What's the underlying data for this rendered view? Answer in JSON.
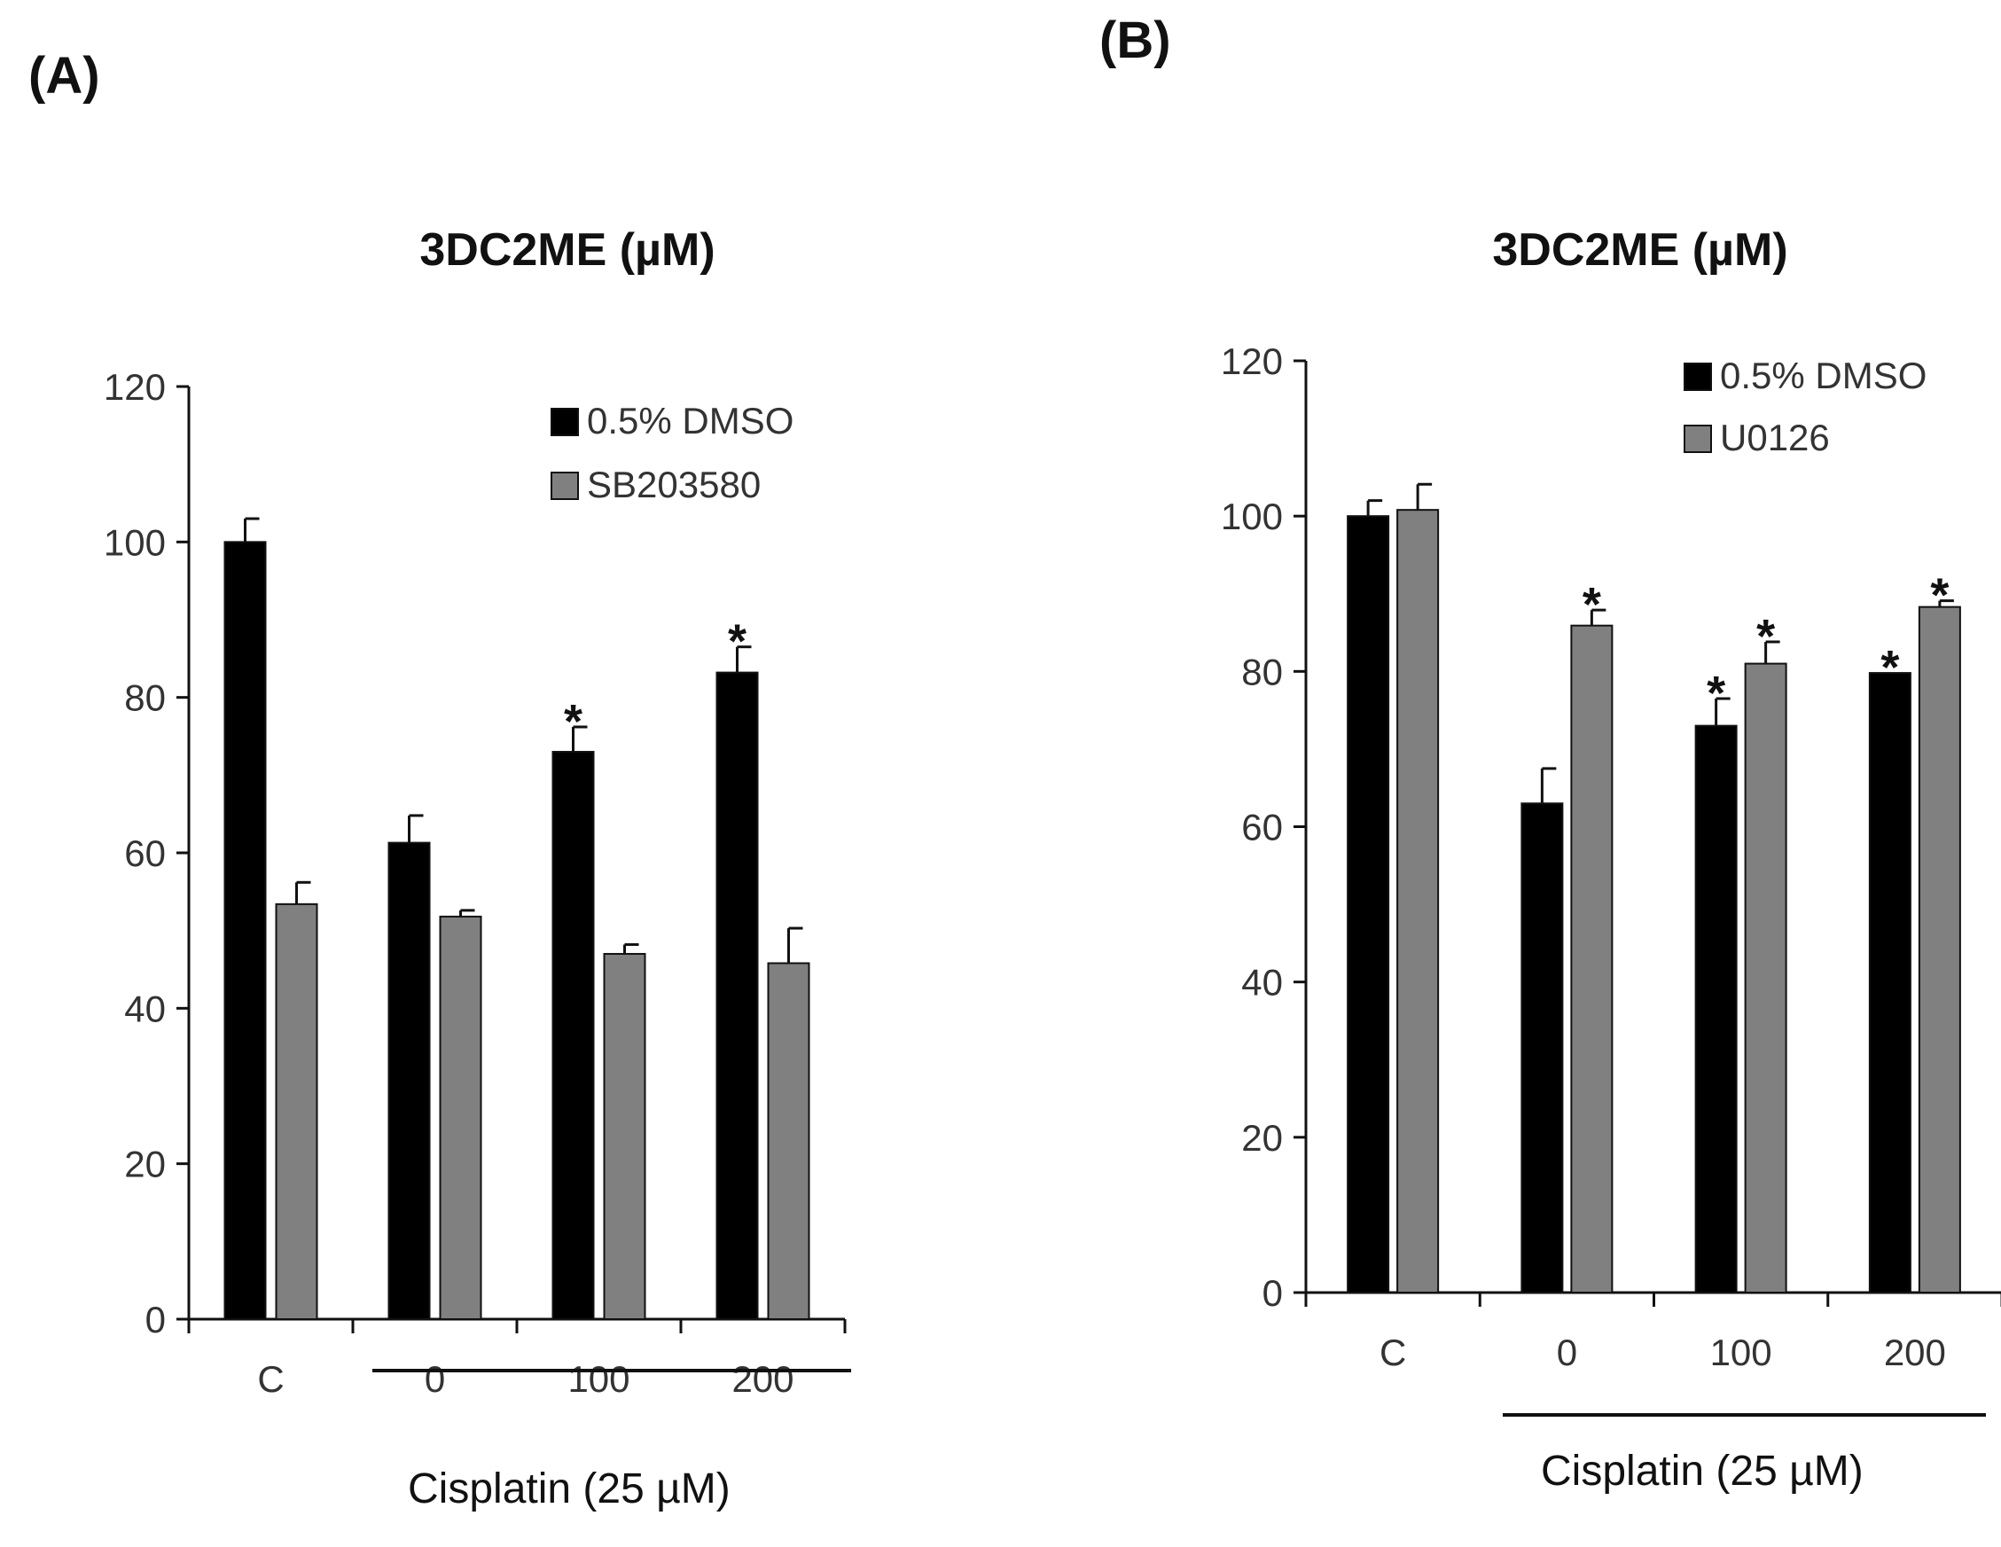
{
  "panels": [
    {
      "label": "(A)",
      "title": "3DC2ME (µM)",
      "group_label": "Cisplatin (25 µM)"
    },
    {
      "label": "(B)",
      "title": "3DC2ME (µM)",
      "group_label": "Cisplatin (25 µM)"
    }
  ],
  "chart_data": [
    {
      "type": "bar",
      "title": "3DC2ME (µM)",
      "xlabel": "Cisplatin (25 µM)",
      "ylabel": "",
      "categories": [
        "C",
        "0",
        "100",
        "200"
      ],
      "ylim": [
        0,
        120
      ],
      "yticks": [
        0,
        20,
        40,
        60,
        80,
        100,
        120
      ],
      "legend_position": "top-right",
      "series": [
        {
          "name": "0.5% DMSO",
          "color": "#000000",
          "values": [
            100,
            61.3,
            73.0,
            83.2
          ],
          "errors": [
            3.0,
            3.5,
            3.2,
            3.3
          ],
          "significant": [
            false,
            false,
            true,
            true
          ]
        },
        {
          "name": "SB203580",
          "color": "#808080",
          "values": [
            53.4,
            51.8,
            47.0,
            45.8
          ],
          "errors": [
            2.8,
            0.8,
            1.2,
            4.5
          ],
          "significant": [
            false,
            false,
            false,
            false
          ]
        }
      ]
    },
    {
      "type": "bar",
      "title": "3DC2ME (µM)",
      "xlabel": "Cisplatin (25 µM)",
      "ylabel": "",
      "categories": [
        "C",
        "0",
        "100",
        "200"
      ],
      "ylim": [
        0,
        120
      ],
      "yticks": [
        0,
        20,
        40,
        60,
        80,
        100,
        120
      ],
      "legend_position": "top-right",
      "series": [
        {
          "name": "0.5% DMSO",
          "color": "#000000",
          "values": [
            100,
            63.0,
            73.0,
            79.8
          ],
          "errors": [
            2.0,
            4.5,
            3.5,
            0.0
          ],
          "significant": [
            false,
            false,
            true,
            true
          ]
        },
        {
          "name": "U0126",
          "color": "#808080",
          "values": [
            100.8,
            85.9,
            81.0,
            88.3
          ],
          "errors": [
            3.3,
            2.0,
            2.8,
            0.8
          ],
          "significant": [
            false,
            true,
            true,
            true
          ]
        }
      ]
    }
  ]
}
